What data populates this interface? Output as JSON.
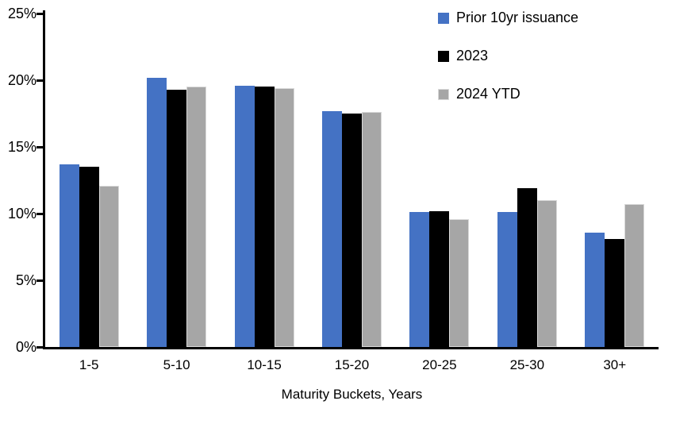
{
  "chart_data": {
    "type": "bar",
    "categories": [
      "1-5",
      "5-10",
      "10-15",
      "15-20",
      "20-25",
      "25-30",
      "30+"
    ],
    "series": [
      {
        "name": "Prior 10yr issuance",
        "color": "#4472C4",
        "values": [
          13.7,
          20.2,
          19.6,
          17.7,
          10.1,
          10.1,
          8.6
        ]
      },
      {
        "name": "2023",
        "color": "#000000",
        "values": [
          13.5,
          19.3,
          19.5,
          17.5,
          10.2,
          11.9,
          8.1
        ]
      },
      {
        "name": "2024 YTD",
        "color": "#A6A6A6",
        "edge_color": "#D9D9D9",
        "values": [
          12.1,
          19.5,
          19.4,
          17.6,
          9.6,
          11.0,
          10.7
        ]
      }
    ],
    "xlabel": "Maturity Buckets, Years",
    "ylim": [
      0,
      25
    ],
    "ytick_step": 5,
    "ytick_labels": [
      "0%",
      "5%",
      "10%",
      "15%",
      "20%",
      "25%"
    ],
    "grid": false,
    "legend_position": "top-right",
    "colors": {
      "axis": "#000000",
      "text": "#000000",
      "background": "#FFFFFF"
    }
  }
}
